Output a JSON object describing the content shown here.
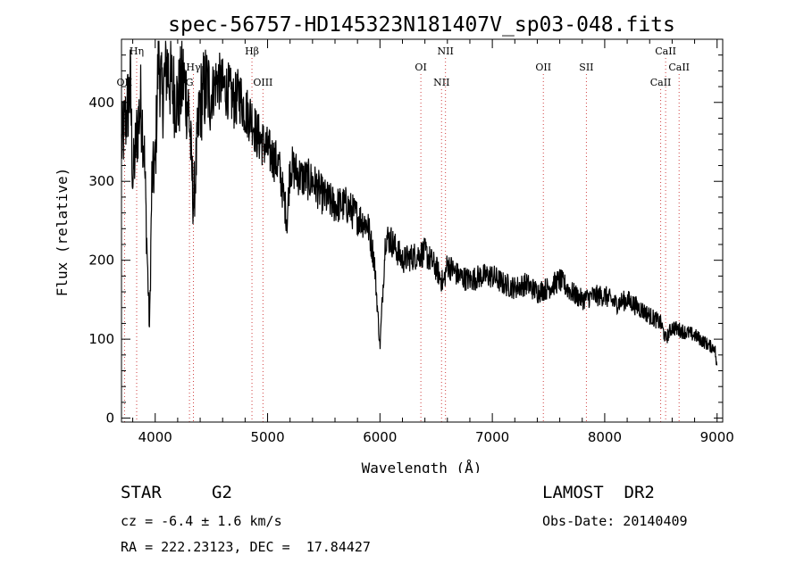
{
  "chart_data": {
    "type": "line",
    "title": "spec-56757-HD145323N181407V_sp03-048.fits",
    "xlabel": "Wavelength (Å)",
    "ylabel": "Flux (relative)",
    "xlim": [
      3700,
      9050
    ],
    "ylim": [
      -5,
      480
    ],
    "xticks": [
      4000,
      5000,
      6000,
      7000,
      8000,
      9000
    ],
    "yticks": [
      0,
      100,
      200,
      300,
      400
    ],
    "grid": false,
    "series": [
      {
        "x": [
          3700,
          3740,
          3780,
          3800,
          3830,
          3870,
          3900,
          3930,
          3950,
          3970,
          4000,
          4030,
          4060,
          4100,
          4150,
          4200,
          4250,
          4300,
          4340,
          4400,
          4450,
          4500,
          4550,
          4600,
          4650,
          4700,
          4750,
          4800,
          4861,
          4900,
          5000,
          5100,
          5175,
          5200,
          5300,
          5400,
          5500,
          5600,
          5700,
          5800,
          5892,
          5950,
          6000,
          6050,
          6100,
          6200,
          6300,
          6400,
          6500,
          6563,
          6600,
          6700,
          6800,
          6900,
          7000,
          7100,
          7200,
          7300,
          7400,
          7500,
          7600,
          7700,
          7800,
          7900,
          8000,
          8100,
          8200,
          8300,
          8400,
          8500,
          8542,
          8600,
          8700,
          8800,
          8900,
          8950,
          8980,
          9000
        ],
        "y": [
          345,
          380,
          420,
          300,
          350,
          400,
          350,
          200,
          110,
          300,
          320,
          470,
          400,
          450,
          420,
          400,
          430,
          390,
          270,
          400,
          420,
          410,
          430,
          420,
          415,
          400,
          410,
          390,
          380,
          360,
          340,
          320,
          250,
          320,
          305,
          300,
          280,
          270,
          270,
          255,
          245,
          200,
          90,
          230,
          225,
          200,
          205,
          210,
          190,
          170,
          195,
          180,
          175,
          180,
          180,
          170,
          165,
          170,
          160,
          165,
          175,
          160,
          150,
          155,
          155,
          145,
          150,
          140,
          130,
          120,
          100,
          115,
          110,
          105,
          95,
          90,
          90,
          60
        ]
      }
    ],
    "annotations": [
      {
        "label": "OII",
        "x": 3727,
        "row": 3
      },
      {
        "label": "Hη",
        "x": 3835,
        "row": 1
      },
      {
        "label": "Hγ",
        "x": 4340,
        "row": 2
      },
      {
        "label": "G",
        "x": 4305,
        "row": 3
      },
      {
        "label": "Hβ",
        "x": 4861,
        "row": 1
      },
      {
        "label": "OIII",
        "x": 4959,
        "row": 3
      },
      {
        "label": "OI",
        "x": 6364,
        "row": 2
      },
      {
        "label": "NII",
        "x": 6548,
        "row": 3
      },
      {
        "label": "NII",
        "x": 6583,
        "row": 1
      },
      {
        "label": "OII",
        "x": 7454,
        "row": 2
      },
      {
        "label": "SII",
        "x": 7837,
        "row": 2
      },
      {
        "label": "CaII",
        "x": 8498,
        "row": 3
      },
      {
        "label": "CaII",
        "x": 8542,
        "row": 1
      },
      {
        "label": "CaII",
        "x": 8662,
        "row": 2
      }
    ]
  },
  "info": {
    "object_type": "STAR",
    "subclass": "G2",
    "survey": "LAMOST  DR2",
    "cz": "cz = -6.4 ± 1.6 km/s",
    "obs_date": "Obs-Date: 20140409",
    "radec": "RA = 222.23123, DEC =  17.84427"
  },
  "colors": {
    "line_marker": "#d04040",
    "spectrum": "#000000"
  }
}
